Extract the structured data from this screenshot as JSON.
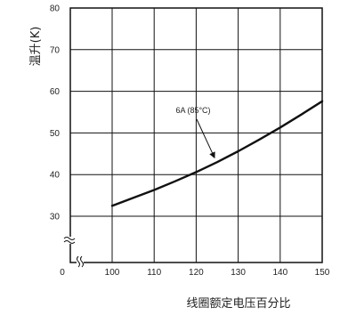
{
  "chart_data": {
    "type": "line",
    "xlabel": "线圈额定电压百分比",
    "ylabel": "温升(K)",
    "x_ticks": [
      "0",
      "100",
      "110",
      "120",
      "130",
      "140",
      "150"
    ],
    "y_ticks": [
      "30",
      "40",
      "50",
      "60",
      "70",
      "80"
    ],
    "xlim": [
      100,
      150
    ],
    "ylim": [
      30,
      80
    ],
    "axis_break": true,
    "grid": true,
    "series": [
      {
        "name": "6A (85°C)",
        "color": "#111111",
        "x": [
          100,
          105,
          110,
          115,
          120,
          125,
          130,
          135,
          140,
          145,
          150
        ],
        "y": [
          32.5,
          34.4,
          36.3,
          38.4,
          40.6,
          43.0,
          45.6,
          48.4,
          51.3,
          54.4,
          57.6
        ]
      }
    ],
    "annotations": [
      {
        "text": "6A (85°C)",
        "points_to_x": 125,
        "points_to_y": 43.0
      }
    ]
  }
}
